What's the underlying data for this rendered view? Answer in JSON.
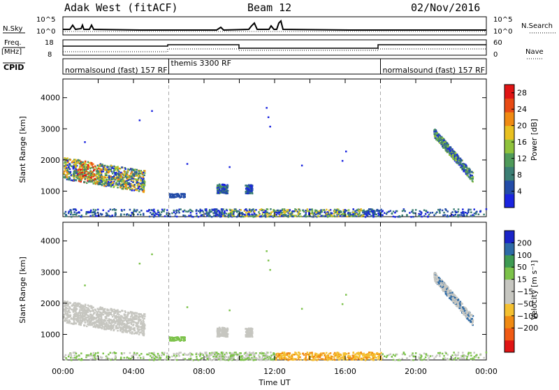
{
  "header": {
    "station": "Adak West (fitACF)",
    "beam": "Beam 12",
    "date": "02/Nov/2016"
  },
  "panels": {
    "nsky_label": "N.Sky",
    "nsearch_label": "N.Search",
    "freq_label": "Freq.",
    "freq_unit": "[MHz]",
    "nave_label": "Nave",
    "cpid_label": "CPID",
    "nsky_ticks": [
      "10^5",
      "10^0"
    ],
    "nsearch_ticks": [
      "10^5",
      "10^0"
    ],
    "freq_ticks": [
      "18",
      "8"
    ],
    "nave_ticks": [
      "60",
      "0"
    ]
  },
  "cpid": [
    {
      "name": "normalsound (fast) 157 RF",
      "start_hour": 0
    },
    {
      "name": "themis 3300 RF",
      "start_hour": 6
    },
    {
      "name": "normalsound (fast) 157 RF",
      "start_hour": 18
    }
  ],
  "colors": {
    "power": [
      "#1a24e0",
      "#234ca8",
      "#3b7e74",
      "#4f9a5a",
      "#8fc23c",
      "#e8c020",
      "#f08a12",
      "#e84a14",
      "#e01414"
    ],
    "velocity": [
      "#e01414",
      "#f05a14",
      "#f08a12",
      "#f4c030",
      "#c6c6c0",
      "#c6c6c0",
      "#7cc24a",
      "#3e9a52",
      "#2d6aa6",
      "#1a24c8"
    ]
  },
  "chart_data": [
    {
      "type": "heatmap",
      "quantity": "power",
      "xlabel": "",
      "ylabel": "Slant Range [km]",
      "ylim": [
        180,
        4600
      ],
      "yticks": [
        "1000",
        "2000",
        "3000",
        "4000"
      ],
      "xlim": [
        0,
        24
      ],
      "colorbar_label": "Power [dB]",
      "colorbar_ticks": [
        "4",
        "8",
        "12",
        "16",
        "20",
        "24",
        "28"
      ],
      "colorbar_range": [
        0,
        30
      ]
    },
    {
      "type": "heatmap",
      "quantity": "velocity",
      "xlabel": "Time UT",
      "ylabel": "Slant Range [km]",
      "ylim": [
        180,
        4600
      ],
      "yticks": [
        "1000",
        "2000",
        "3000",
        "4000"
      ],
      "xlim": [
        0,
        24
      ],
      "xticks": [
        "00:00",
        "04:00",
        "08:00",
        "12:00",
        "16:00",
        "20:00",
        "00:00"
      ],
      "colorbar_label": "Velocity [m s⁻¹]",
      "colorbar_ticks": [
        "200",
        "100",
        "50",
        "15",
        "−15",
        "−50",
        "−100",
        "−200"
      ]
    }
  ]
}
